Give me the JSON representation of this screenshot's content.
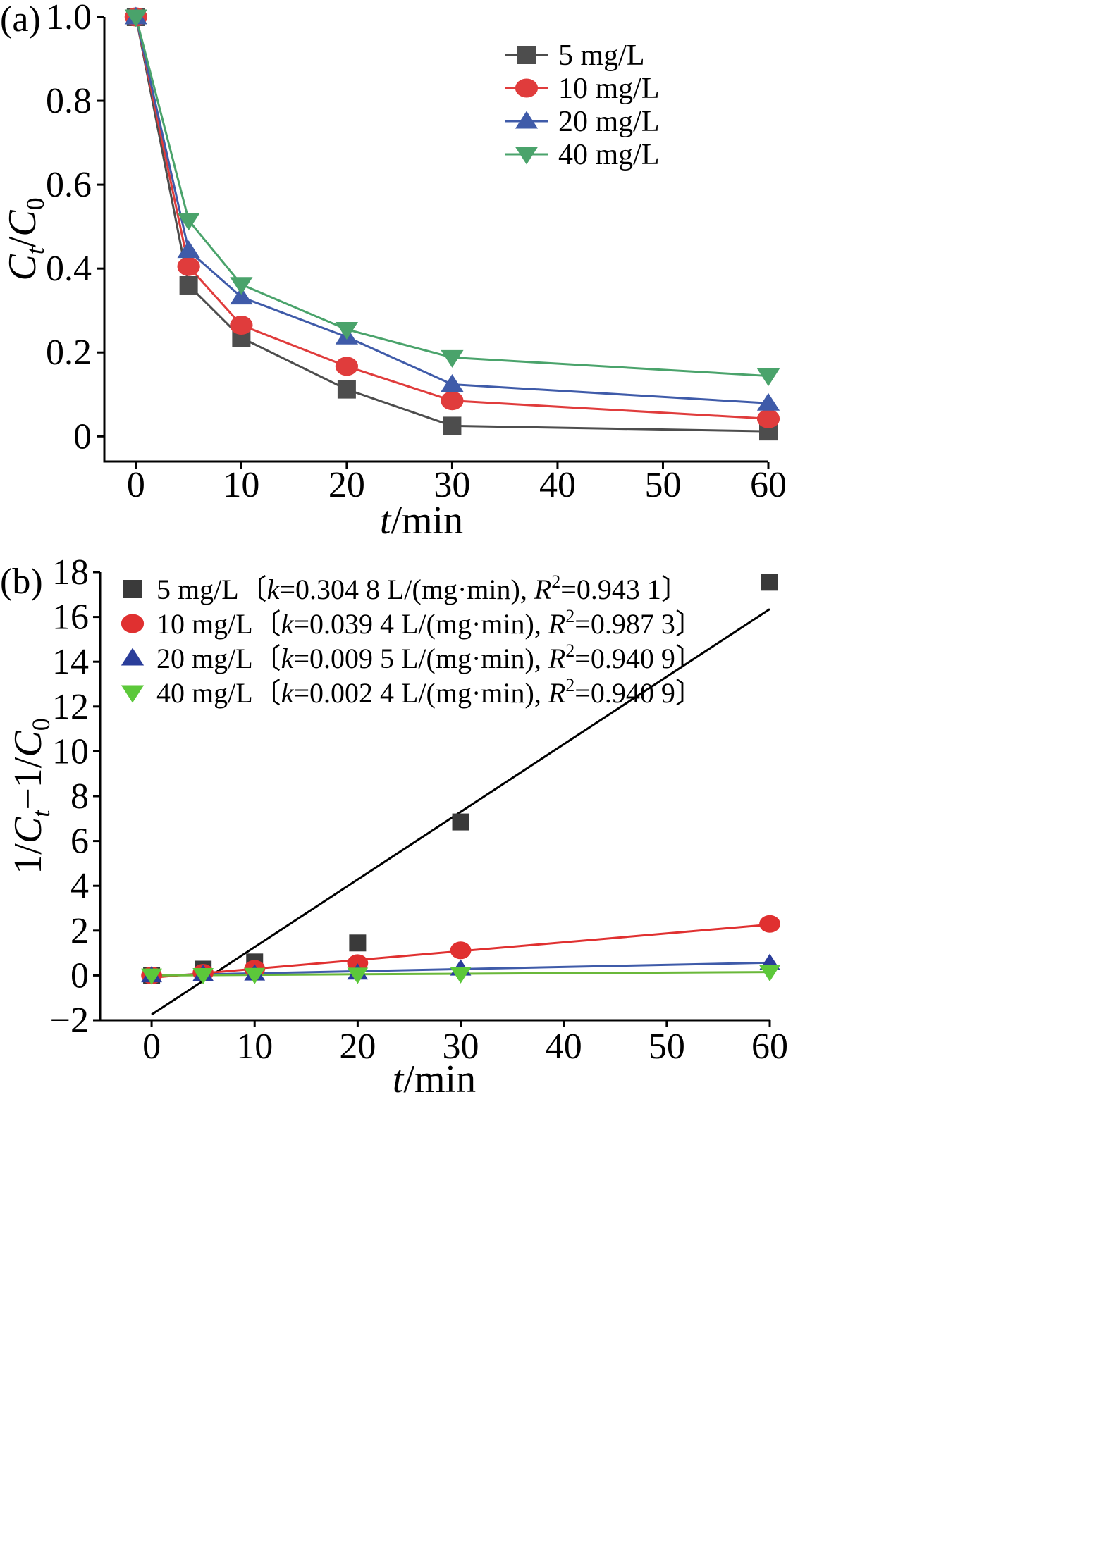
{
  "chart_data": [
    {
      "panel_label": "(a)",
      "type": "line",
      "xlabel": {
        "italic": "t",
        "rest": "/min"
      },
      "ylabel": {
        "c": "C",
        "t": "t",
        "slash": "/",
        "c2": "C",
        "zero": "0"
      },
      "xlim": [
        -3,
        60
      ],
      "ylim": [
        -0.06,
        1.0
      ],
      "x_ticks": [
        0,
        10,
        20,
        30,
        40,
        50,
        60
      ],
      "x_tick_labels": [
        "0",
        "10",
        "20",
        "30",
        "40",
        "50",
        "60"
      ],
      "y_ticks": [
        0,
        0.2,
        0.4,
        0.6,
        0.8,
        1.0
      ],
      "y_tick_labels": [
        "0",
        "0.2",
        "0.4",
        "0.6",
        "0.8",
        "1.0"
      ],
      "legend_position": "top-right",
      "x": [
        0,
        5,
        10,
        20,
        30,
        60
      ],
      "series": [
        {
          "name": "5 mg/L",
          "color": "#4d4d4d",
          "marker": "square",
          "values": [
            1.0,
            0.36,
            0.235,
            0.112,
            0.025,
            0.012
          ]
        },
        {
          "name": "10 mg/L",
          "color": "#e03c3c",
          "marker": "circle",
          "values": [
            1.0,
            0.405,
            0.265,
            0.167,
            0.085,
            0.042
          ]
        },
        {
          "name": "20 mg/L",
          "color": "#3f5ba9",
          "marker": "triangle-up",
          "values": [
            1.0,
            0.443,
            0.332,
            0.237,
            0.124,
            0.079
          ]
        },
        {
          "name": "40 mg/L",
          "color": "#4aa36b",
          "marker": "triangle-down",
          "values": [
            1.0,
            0.515,
            0.362,
            0.255,
            0.188,
            0.144
          ]
        }
      ]
    },
    {
      "panel_label": "(b)",
      "type": "scatter",
      "xlabel": {
        "italic": "t",
        "rest": "/min"
      },
      "ylabel": {
        "pre": "1/",
        "c": "C",
        "t": "t",
        "mid": "−1/",
        "c2": "C",
        "zero": "0"
      },
      "xlim": [
        -5,
        60
      ],
      "ylim": [
        -2,
        18
      ],
      "x_ticks": [
        0,
        10,
        20,
        30,
        40,
        50,
        60
      ],
      "x_tick_labels": [
        "0",
        "10",
        "20",
        "30",
        "40",
        "50",
        "60"
      ],
      "y_ticks": [
        -2,
        0,
        2,
        4,
        6,
        8,
        10,
        12,
        14,
        16,
        18
      ],
      "y_tick_labels": [
        "−2",
        "0",
        "2",
        "4",
        "6",
        "8",
        "10",
        "12",
        "14",
        "16",
        "18"
      ],
      "legend_position": "top-left",
      "x": [
        0,
        5,
        10,
        20,
        30,
        60
      ],
      "series": [
        {
          "name": "5 mg/L",
          "legend": {
            "head": "5 mg/L〔",
            "k": "k",
            "keq": "=0.304 8 L/(mg·min), ",
            "r": "R",
            "sup": "2",
            "req": "=0.943 1〕"
          },
          "color": "#3a3a3a",
          "marker": "square",
          "values": [
            0,
            0.28,
            0.6,
            1.45,
            6.85,
            17.55
          ],
          "fit_line": {
            "x": [
              0,
              60
            ],
            "y": [
              -1.75,
              16.35
            ],
            "color": "#000000"
          }
        },
        {
          "name": "10 mg/L",
          "legend": {
            "head": "10 mg/L〔",
            "k": "k",
            "keq": "=0.039 4 L/(mg·min), ",
            "r": "R",
            "sup": "2",
            "req": "=0.987 3〕"
          },
          "color": "#e03030",
          "marker": "circle",
          "values": [
            0,
            0.12,
            0.3,
            0.55,
            1.12,
            2.3
          ],
          "fit_line": {
            "x": [
              0,
              60
            ],
            "y": [
              -0.1,
              2.27
            ],
            "color": "#e03030"
          }
        },
        {
          "name": "20 mg/L",
          "legend": {
            "head": "20 mg/L〔",
            "k": "k",
            "keq": "=0.009 5 L/(mg·min), ",
            "r": "R",
            "sup": "2",
            "req": "=0.940 9〕"
          },
          "color": "#2a3d9a",
          "marker": "triangle-up",
          "values": [
            0,
            0.06,
            0.08,
            0.12,
            0.3,
            0.55
          ],
          "fit_line": {
            "x": [
              0,
              60
            ],
            "y": [
              0.0,
              0.57
            ],
            "color": "#3f5ba9"
          }
        },
        {
          "name": "40 mg/L",
          "legend": {
            "head": "40 mg/L〔",
            "k": "k",
            "keq": "=0.002 4 L/(mg·min), ",
            "r": "R",
            "sup": "2",
            "req": "=0.940 9〕"
          },
          "color": "#5cc83a",
          "marker": "triangle-down",
          "values": [
            0,
            0.02,
            0.03,
            0.04,
            0.06,
            0.15
          ],
          "fit_line": {
            "x": [
              0,
              60
            ],
            "y": [
              0.0,
              0.15
            ],
            "color": "#6ab83a"
          }
        }
      ]
    }
  ]
}
